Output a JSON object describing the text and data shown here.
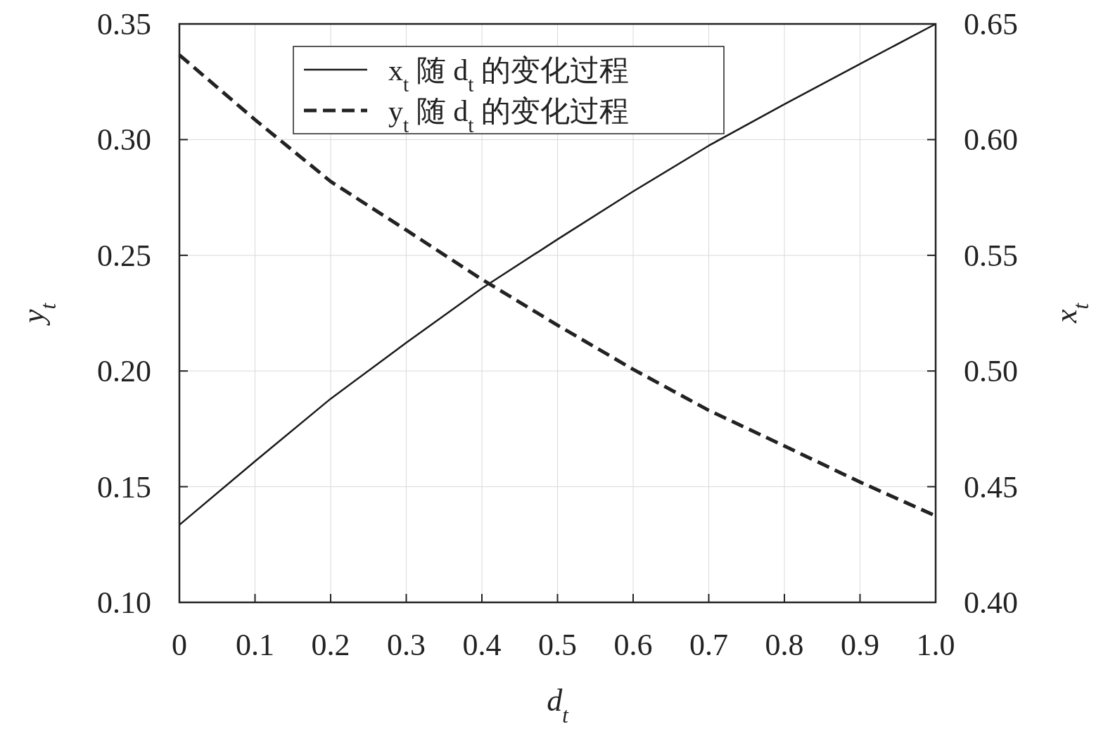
{
  "chart_data": {
    "type": "line",
    "xlabel": "d$_{t}$",
    "ylabel": "y$_{t}$",
    "y2label": "x$_{t}$",
    "x": [
      0,
      0.1,
      0.2,
      0.3,
      0.4,
      0.5,
      0.6,
      0.7,
      0.8,
      0.9,
      1.0
    ],
    "series": [
      {
        "name": "x$_{t}$ 随 d$_{t}$ 的变化过程",
        "color": "#1a1a1a",
        "axis": "y2",
        "line_style": "solid",
        "values": [
          0.4335,
          0.461,
          0.488,
          0.5122,
          0.5357,
          0.5569,
          0.5776,
          0.5974,
          0.6153,
          0.6327,
          0.65
        ]
      },
      {
        "name": "y$_{t}$ 随 d$_{t}$ 的变化过程",
        "color": "#222222",
        "line_style": "dashed",
        "values": [
          0.3366,
          0.3086,
          0.2819,
          0.2609,
          0.2396,
          0.2198,
          0.2007,
          0.183,
          0.1676,
          0.152,
          0.1374
        ]
      }
    ],
    "xlim": [
      0,
      1
    ],
    "xticks": [
      0,
      0.1,
      0.2,
      0.3,
      0.4,
      0.5,
      0.6,
      0.7,
      0.8,
      0.9,
      {
        "value": 1,
        "label": "1.0"
      }
    ],
    "ylim": [
      0.1,
      0.35
    ],
    "yticks": [
      {
        "value": 0.1,
        "label": "0.10"
      },
      0.15,
      {
        "value": 0.2,
        "label": "0.20"
      },
      0.25,
      {
        "value": 0.3,
        "label": "0.30"
      },
      0.35
    ],
    "y2lim": [
      0.4,
      0.65
    ],
    "y2ticks": [
      {
        "value": 0.4,
        "label": "0.40"
      },
      0.45,
      {
        "value": 0.5,
        "label": "0.50"
      },
      0.55,
      {
        "value": 0.6,
        "label": "0.60"
      },
      0.65
    ],
    "grid": true,
    "legend": "top"
  }
}
